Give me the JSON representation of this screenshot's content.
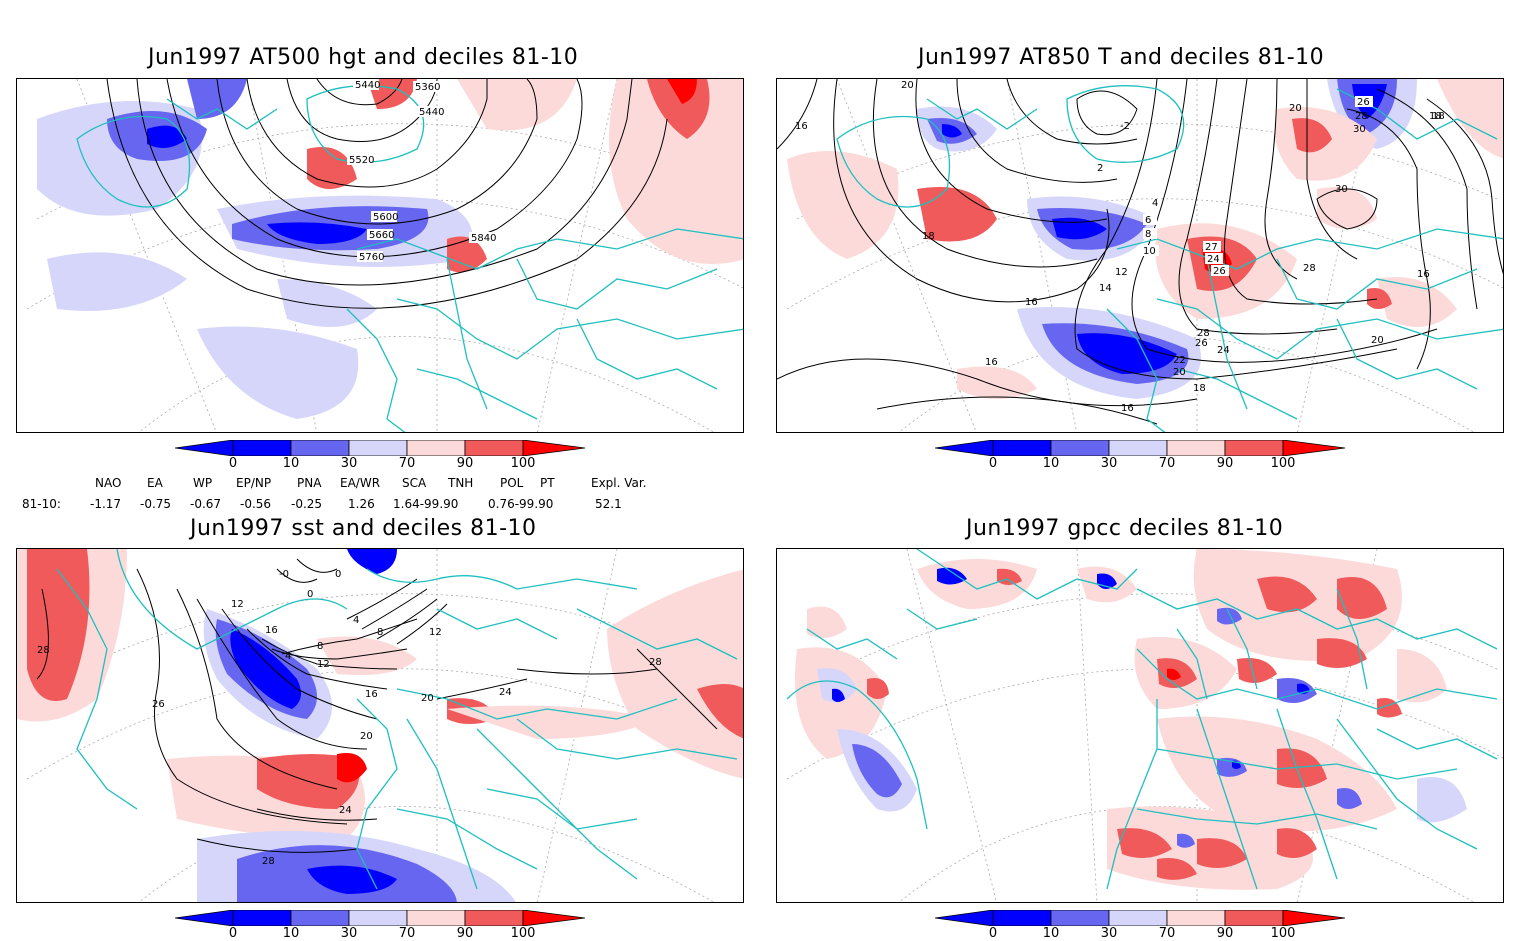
{
  "colors": {
    "deep_blue": "#0000ff",
    "mid_blue": "#6666f0",
    "light_blue": "#d6d6fa",
    "light_red": "#fcdada",
    "mid_red": "#f05a5a",
    "deep_red": "#ff0000",
    "coast": "#1fbfbf",
    "contour": "#000000"
  },
  "colorbar_labels": [
    "0",
    "10",
    "30",
    "70",
    "90",
    "100"
  ],
  "panels": {
    "p1": {
      "title": "Jun1997 AT500 hgt and deciles 81-10",
      "contour_labels": [
        "5440",
        "5360",
        "5440",
        "5520",
        "5600",
        "5660",
        "5760",
        "5840"
      ]
    },
    "p2": {
      "title": "Jun1997 AT850 T and deciles 81-10",
      "contour_labels": [
        "20",
        "16",
        "-2",
        "2",
        "4",
        "6",
        "8",
        "10",
        "12",
        "14",
        "16",
        "18",
        "20",
        "26",
        "28",
        "30",
        "30",
        "18",
        "16",
        "27",
        "24",
        "26",
        "28",
        "26",
        "24",
        "22",
        "20",
        "18",
        "16",
        "16",
        "20",
        "28",
        "18"
      ]
    },
    "p3": {
      "title": "Jun1997 sst and deciles 81-10",
      "contour_labels": [
        "-0",
        "0",
        "0",
        "12",
        "16",
        "4",
        "8",
        "12",
        "4",
        "8",
        "12",
        "16",
        "20",
        "26",
        "20",
        "24",
        "28",
        "28",
        "24",
        "28"
      ]
    },
    "p4": {
      "title": "Jun1997 gpcc deciles 81-10"
    }
  },
  "indices": {
    "headers": [
      "NAO",
      "EA",
      "WP",
      "EP/NP",
      "PNA",
      "EA/WR",
      "SCA",
      "TNH",
      "POL",
      "PT",
      "Expl. Var."
    ],
    "row_label": "81-10:",
    "values": [
      "-1.17",
      "-0.75",
      "-0.67",
      "-0.56",
      "-0.25",
      "1.26",
      "1.64-99.90",
      "",
      "0.76-99.90",
      "",
      "52.1"
    ]
  }
}
